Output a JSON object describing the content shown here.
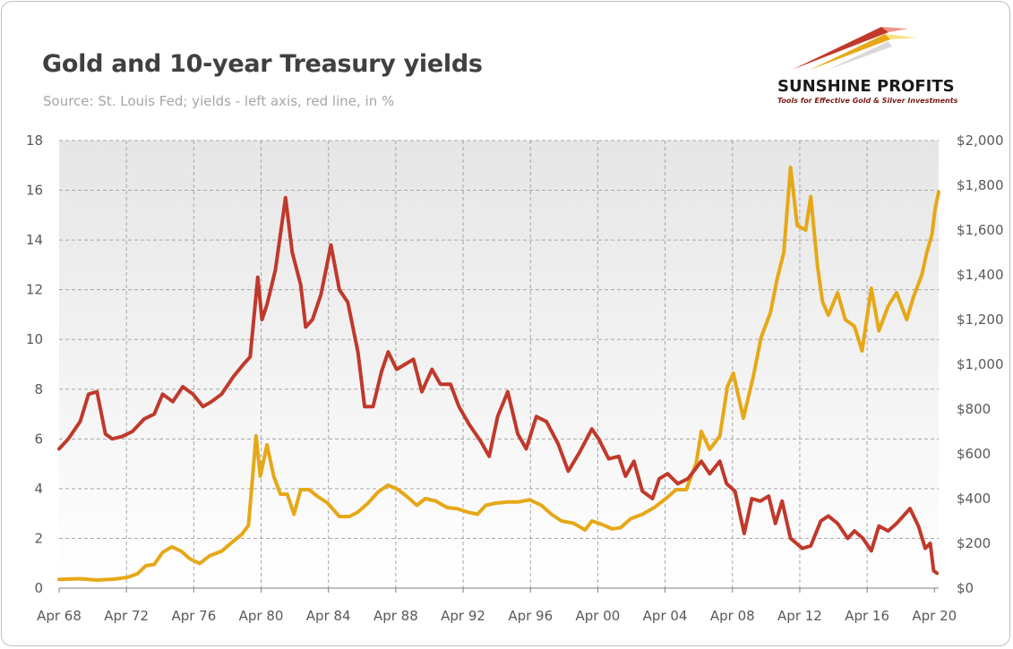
{
  "header": {
    "title": "Gold and 10-year Treasury yields",
    "subtitle": "Source: St. Louis Fed; yields - left axis, red line, in %"
  },
  "logo": {
    "name": "SUNSHINE PROFITS",
    "tagline": "Tools for Effective Gold & Silver Investments"
  },
  "chart_data": {
    "type": "line",
    "x_ticks": [
      "Apr 68",
      "Apr 72",
      "Apr 76",
      "Apr 80",
      "Apr 84",
      "Apr 88",
      "Apr 92",
      "Apr 96",
      "Apr 00",
      "Apr 04",
      "Apr 08",
      "Apr 12",
      "Apr 16",
      "Apr 20"
    ],
    "y_left_ticks": [
      "0",
      "2",
      "4",
      "6",
      "8",
      "10",
      "12",
      "14",
      "16",
      "18"
    ],
    "y_right_ticks": [
      "$0",
      "$200",
      "$400",
      "$600",
      "$800",
      "$1,000",
      "$1,200",
      "$1,400",
      "$1,600",
      "$1,800",
      "$2,000"
    ],
    "ylim_left": [
      0,
      18
    ],
    "ylim_right": [
      0,
      2000
    ],
    "xlim": [
      1968.25,
      2020.5
    ],
    "grid": true,
    "series": [
      {
        "color": "#c0392b",
        "axis": "left",
        "points": [
          [
            1968.25,
            5.6
          ],
          [
            1968.8,
            6.0
          ],
          [
            1969.5,
            6.7
          ],
          [
            1970.0,
            7.8
          ],
          [
            1970.5,
            7.9
          ],
          [
            1971.0,
            6.2
          ],
          [
            1971.4,
            6.0
          ],
          [
            1972.0,
            6.1
          ],
          [
            1972.6,
            6.3
          ],
          [
            1973.3,
            6.8
          ],
          [
            1973.9,
            7.0
          ],
          [
            1974.4,
            7.8
          ],
          [
            1975.0,
            7.5
          ],
          [
            1975.6,
            8.1
          ],
          [
            1976.2,
            7.8
          ],
          [
            1976.8,
            7.3
          ],
          [
            1977.3,
            7.5
          ],
          [
            1977.9,
            7.8
          ],
          [
            1978.6,
            8.5
          ],
          [
            1979.2,
            9.0
          ],
          [
            1979.6,
            9.3
          ],
          [
            1980.05,
            12.5
          ],
          [
            1980.3,
            10.8
          ],
          [
            1980.6,
            11.4
          ],
          [
            1981.1,
            12.8
          ],
          [
            1981.7,
            15.7
          ],
          [
            1982.1,
            13.5
          ],
          [
            1982.6,
            12.2
          ],
          [
            1982.9,
            10.5
          ],
          [
            1983.3,
            10.8
          ],
          [
            1983.8,
            11.8
          ],
          [
            1984.4,
            13.8
          ],
          [
            1984.9,
            12.0
          ],
          [
            1985.4,
            11.5
          ],
          [
            1986.0,
            9.5
          ],
          [
            1986.4,
            7.3
          ],
          [
            1986.9,
            7.3
          ],
          [
            1987.4,
            8.7
          ],
          [
            1987.8,
            9.5
          ],
          [
            1988.3,
            8.8
          ],
          [
            1988.8,
            9.0
          ],
          [
            1989.3,
            9.2
          ],
          [
            1989.8,
            7.9
          ],
          [
            1990.4,
            8.8
          ],
          [
            1990.9,
            8.2
          ],
          [
            1991.5,
            8.2
          ],
          [
            1992.0,
            7.3
          ],
          [
            1992.6,
            6.6
          ],
          [
            1993.3,
            5.9
          ],
          [
            1993.8,
            5.3
          ],
          [
            1994.3,
            6.9
          ],
          [
            1994.9,
            7.9
          ],
          [
            1995.5,
            6.2
          ],
          [
            1996.0,
            5.6
          ],
          [
            1996.6,
            6.9
          ],
          [
            1997.2,
            6.7
          ],
          [
            1997.9,
            5.8
          ],
          [
            1998.5,
            4.7
          ],
          [
            1999.2,
            5.5
          ],
          [
            1999.9,
            6.4
          ],
          [
            2000.3,
            6.0
          ],
          [
            2000.9,
            5.2
          ],
          [
            2001.5,
            5.3
          ],
          [
            2001.9,
            4.5
          ],
          [
            2002.4,
            5.1
          ],
          [
            2002.9,
            3.9
          ],
          [
            2003.5,
            3.6
          ],
          [
            2003.9,
            4.4
          ],
          [
            2004.4,
            4.6
          ],
          [
            2005.0,
            4.2
          ],
          [
            2005.6,
            4.4
          ],
          [
            2006.4,
            5.1
          ],
          [
            2006.9,
            4.6
          ],
          [
            2007.5,
            5.1
          ],
          [
            2007.9,
            4.2
          ],
          [
            2008.4,
            3.9
          ],
          [
            2008.95,
            2.2
          ],
          [
            2009.4,
            3.6
          ],
          [
            2009.9,
            3.5
          ],
          [
            2010.4,
            3.7
          ],
          [
            2010.8,
            2.6
          ],
          [
            2011.2,
            3.5
          ],
          [
            2011.7,
            2.0
          ],
          [
            2012.4,
            1.6
          ],
          [
            2012.9,
            1.7
          ],
          [
            2013.5,
            2.7
          ],
          [
            2013.95,
            2.9
          ],
          [
            2014.5,
            2.6
          ],
          [
            2015.1,
            2.0
          ],
          [
            2015.5,
            2.3
          ],
          [
            2016.0,
            2.0
          ],
          [
            2016.5,
            1.5
          ],
          [
            2016.95,
            2.5
          ],
          [
            2017.5,
            2.3
          ],
          [
            2018.0,
            2.6
          ],
          [
            2018.8,
            3.2
          ],
          [
            2019.3,
            2.5
          ],
          [
            2019.7,
            1.6
          ],
          [
            2020.0,
            1.8
          ],
          [
            2020.2,
            0.7
          ],
          [
            2020.4,
            0.6
          ]
        ]
      },
      {
        "color": "#e6a817",
        "axis": "right",
        "points": [
          [
            1968.25,
            39
          ],
          [
            1969.5,
            42
          ],
          [
            1970.5,
            36
          ],
          [
            1971.5,
            40
          ],
          [
            1972.3,
            48
          ],
          [
            1972.9,
            64
          ],
          [
            1973.4,
            100
          ],
          [
            1973.9,
            106
          ],
          [
            1974.4,
            160
          ],
          [
            1974.95,
            185
          ],
          [
            1975.5,
            165
          ],
          [
            1976.0,
            132
          ],
          [
            1976.6,
            110
          ],
          [
            1977.2,
            145
          ],
          [
            1977.9,
            165
          ],
          [
            1978.6,
            210
          ],
          [
            1979.1,
            240
          ],
          [
            1979.5,
            280
          ],
          [
            1979.95,
            680
          ],
          [
            1980.2,
            500
          ],
          [
            1980.6,
            640
          ],
          [
            1981.0,
            500
          ],
          [
            1981.4,
            420
          ],
          [
            1981.8,
            420
          ],
          [
            1982.2,
            330
          ],
          [
            1982.6,
            440
          ],
          [
            1983.1,
            440
          ],
          [
            1983.6,
            410
          ],
          [
            1984.2,
            380
          ],
          [
            1984.9,
            320
          ],
          [
            1985.5,
            320
          ],
          [
            1986.0,
            340
          ],
          [
            1986.6,
            380
          ],
          [
            1987.2,
            430
          ],
          [
            1987.8,
            460
          ],
          [
            1988.4,
            440
          ],
          [
            1988.9,
            410
          ],
          [
            1989.5,
            370
          ],
          [
            1990.0,
            400
          ],
          [
            1990.6,
            390
          ],
          [
            1991.3,
            360
          ],
          [
            1991.9,
            355
          ],
          [
            1992.5,
            340
          ],
          [
            1993.1,
            330
          ],
          [
            1993.6,
            370
          ],
          [
            1994.2,
            380
          ],
          [
            1994.9,
            385
          ],
          [
            1995.5,
            385
          ],
          [
            1996.2,
            395
          ],
          [
            1996.9,
            370
          ],
          [
            1997.5,
            330
          ],
          [
            1998.1,
            300
          ],
          [
            1998.8,
            290
          ],
          [
            1999.5,
            260
          ],
          [
            1999.9,
            300
          ],
          [
            2000.5,
            285
          ],
          [
            2001.1,
            265
          ],
          [
            2001.6,
            270
          ],
          [
            2002.2,
            310
          ],
          [
            2002.9,
            330
          ],
          [
            2003.6,
            360
          ],
          [
            2004.3,
            400
          ],
          [
            2004.9,
            440
          ],
          [
            2005.5,
            440
          ],
          [
            2006.1,
            560
          ],
          [
            2006.4,
            700
          ],
          [
            2006.9,
            620
          ],
          [
            2007.5,
            680
          ],
          [
            2007.95,
            900
          ],
          [
            2008.3,
            960
          ],
          [
            2008.9,
            760
          ],
          [
            2009.5,
            950
          ],
          [
            2009.95,
            1120
          ],
          [
            2010.5,
            1230
          ],
          [
            2010.9,
            1380
          ],
          [
            2011.3,
            1500
          ],
          [
            2011.7,
            1880
          ],
          [
            2012.1,
            1620
          ],
          [
            2012.6,
            1600
          ],
          [
            2012.9,
            1750
          ],
          [
            2013.3,
            1440
          ],
          [
            2013.6,
            1280
          ],
          [
            2013.95,
            1220
          ],
          [
            2014.5,
            1320
          ],
          [
            2014.95,
            1200
          ],
          [
            2015.5,
            1170
          ],
          [
            2015.95,
            1060
          ],
          [
            2016.5,
            1340
          ],
          [
            2016.95,
            1150
          ],
          [
            2017.5,
            1260
          ],
          [
            2018.0,
            1320
          ],
          [
            2018.6,
            1200
          ],
          [
            2019.0,
            1300
          ],
          [
            2019.5,
            1400
          ],
          [
            2019.8,
            1500
          ],
          [
            2020.1,
            1580
          ],
          [
            2020.3,
            1700
          ],
          [
            2020.5,
            1770
          ]
        ]
      }
    ]
  }
}
